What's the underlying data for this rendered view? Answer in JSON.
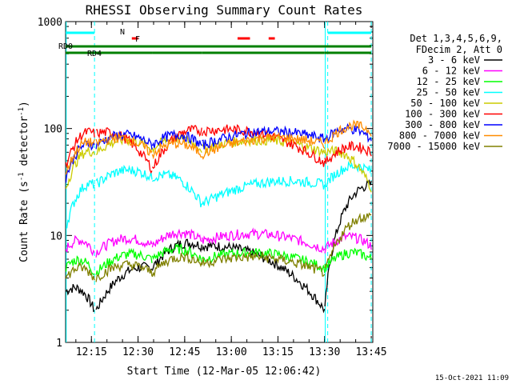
{
  "chart_data": {
    "type": "line",
    "title": "RHESSI Observing Summary Count Rates",
    "xlabel": "Start Time (12-Mar-05 12:06:42)",
    "ylabel": "Count Rate (s",
    "ylabel_sup": "-1",
    "ylabel_mid": " detector",
    "ylabel_tail": ")",
    "yscale": "log",
    "ylim": [
      1,
      1000
    ],
    "xlim_minutes": [
      6.7,
      105.5
    ],
    "x_ticks": [
      {
        "label": "12:15",
        "minute": 15
      },
      {
        "label": "12:30",
        "minute": 30
      },
      {
        "label": "12:45",
        "minute": 45
      },
      {
        "label": "13:00",
        "minute": 60
      },
      {
        "label": "13:15",
        "minute": 75
      },
      {
        "label": "13:30",
        "minute": 90
      },
      {
        "label": "13:45",
        "minute": 105
      }
    ],
    "y_ticks": [
      {
        "label": "1",
        "value": 1
      },
      {
        "label": "10",
        "value": 10
      },
      {
        "label": "100",
        "value": 100
      },
      {
        "label": "1000",
        "value": 1000
      }
    ],
    "legend_header": [
      "Det 1,3,4,5,6,9,",
      "FDecim 2, Att 0"
    ],
    "legend_placement": "right",
    "series": [
      {
        "name": "3 - 6 keV",
        "color": "#000000"
      },
      {
        "name": "6 - 12 keV",
        "color": "#ff00ff"
      },
      {
        "name": "12 - 25 keV",
        "color": "#00ff00"
      },
      {
        "name": "25 - 50 keV",
        "color": "#00ffff"
      },
      {
        "name": "50 - 100 keV",
        "color": "#cccc00"
      },
      {
        "name": "100 - 300 keV",
        "color": "#ff0000"
      },
      {
        "name": "300 - 800 keV",
        "color": "#0000ff"
      },
      {
        "name": "800 - 7000 keV",
        "color": "#ff8c00"
      },
      {
        "name": "7000 - 15000 keV",
        "color": "#808000"
      }
    ],
    "flag_bars": [
      {
        "label": "N",
        "color": "#00ffff",
        "segments": [
          [
            6.7,
            16.0
          ],
          [
            91.0,
            105.0
          ]
        ]
      },
      {
        "label": "F",
        "color": "#ff0000",
        "segments": [
          [
            28.0,
            30.0
          ],
          [
            62.0,
            66.0
          ],
          [
            72.0,
            74.0
          ]
        ]
      },
      {
        "label": "RD0",
        "color": "#008000",
        "segments": [
          [
            6.7,
            105.0
          ]
        ]
      },
      {
        "label": "RD4",
        "color": "#008000",
        "segments": [
          [
            6.7,
            34.5
          ],
          [
            34.5,
            50.5
          ],
          [
            50.5,
            90.0
          ],
          [
            90.0,
            105.0
          ]
        ]
      }
    ],
    "night_boundaries_minutes": [
      16.0,
      91.0,
      105.0
    ],
    "data_gaps_minutes": [
      [
        16.0,
        16.0
      ]
    ],
    "timestamp": "15-Oct-2021 11:09"
  }
}
